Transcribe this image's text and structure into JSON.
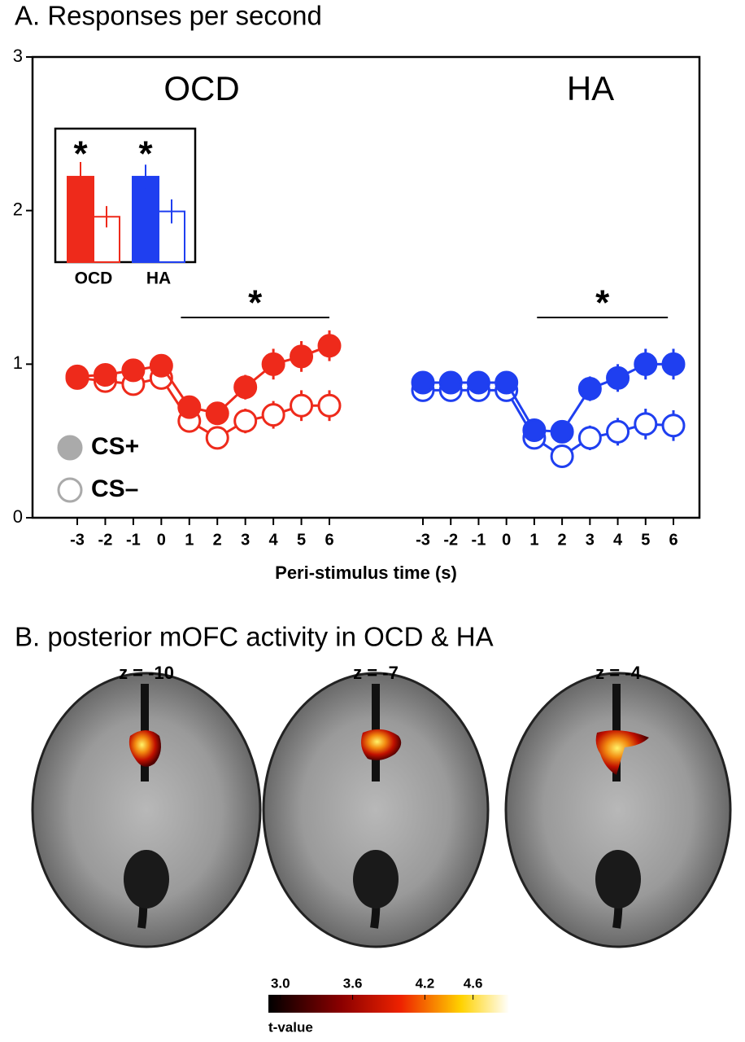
{
  "chart_data": [
    {
      "type": "line",
      "title": "A. Responses per second",
      "xlabel": "Peri-stimulus time (s)",
      "ylim": [
        0,
        3
      ],
      "yticks": [
        0,
        1,
        2,
        3
      ],
      "legend": [
        {
          "name": "CS+",
          "filled": true
        },
        {
          "name": "CS–",
          "filled": false
        }
      ],
      "legend_color": "#aaaaaa",
      "groups": [
        {
          "name": "OCD",
          "color": "#ee2a1b",
          "x": [
            -3,
            -2,
            -1,
            0,
            1,
            2,
            3,
            4,
            5,
            6
          ],
          "series": [
            {
              "values": [
                0.92,
                0.93,
                0.96,
                0.99,
                0.72,
                0.68,
                0.85,
                1.0,
                1.05,
                1.12
              ],
              "errors": [
                0.03,
                0.03,
                0.04,
                0.04,
                0.06,
                0.06,
                0.08,
                0.1,
                0.1,
                0.1
              ]
            },
            {
              "values": [
                0.91,
                0.89,
                0.87,
                0.91,
                0.63,
                0.52,
                0.63,
                0.67,
                0.73,
                0.73
              ],
              "errors": [
                0.03,
                0.03,
                0.04,
                0.04,
                0.06,
                0.06,
                0.08,
                0.09,
                0.1,
                0.1
              ]
            }
          ],
          "significance": {
            "label": "*",
            "from": 0.7,
            "to": 6
          }
        },
        {
          "name": "HA",
          "color": "#1f3ff0",
          "x": [
            -3,
            -2,
            -1,
            0,
            1,
            2,
            3,
            4,
            5,
            6
          ],
          "series": [
            {
              "values": [
                0.88,
                0.88,
                0.88,
                0.88,
                0.57,
                0.56,
                0.84,
                0.91,
                1.0,
                1.0
              ],
              "errors": [
                0.03,
                0.03,
                0.03,
                0.03,
                0.06,
                0.06,
                0.08,
                0.09,
                0.1,
                0.1
              ]
            },
            {
              "values": [
                0.83,
                0.83,
                0.83,
                0.83,
                0.52,
                0.4,
                0.52,
                0.56,
                0.61,
                0.6
              ],
              "errors": [
                0.03,
                0.03,
                0.03,
                0.03,
                0.06,
                0.06,
                0.08,
                0.09,
                0.1,
                0.1
              ]
            }
          ],
          "significance": {
            "label": "*",
            "from": 1.1,
            "to": 5.8
          }
        }
      ]
    },
    {
      "type": "bar",
      "categories": [
        "OCD",
        "HA"
      ],
      "ylim": [
        0,
        1
      ],
      "annotations": [
        "*",
        "*"
      ],
      "series": [
        {
          "name": null,
          "filled": true,
          "values": [
            0.64,
            0.64
          ],
          "errors": [
            0.11,
            0.09
          ]
        },
        {
          "name": null,
          "filled": false,
          "values": [
            0.34,
            0.38
          ],
          "errors": [
            0.08,
            0.09
          ]
        }
      ],
      "colors": [
        "#ee2a1b",
        "#1f3ff0"
      ]
    },
    {
      "type": "colorbar",
      "title": "B. posterior mOFC activity in OCD & HA",
      "slices": [
        "z = -10",
        "z = -7",
        "z = -4"
      ],
      "label": "t-value",
      "clim": [
        2.9,
        4.9
      ],
      "ticks": [
        {
          "value": 3.0,
          "label": "3.0"
        },
        3.6,
        4.2,
        4.6
      ]
    }
  ]
}
